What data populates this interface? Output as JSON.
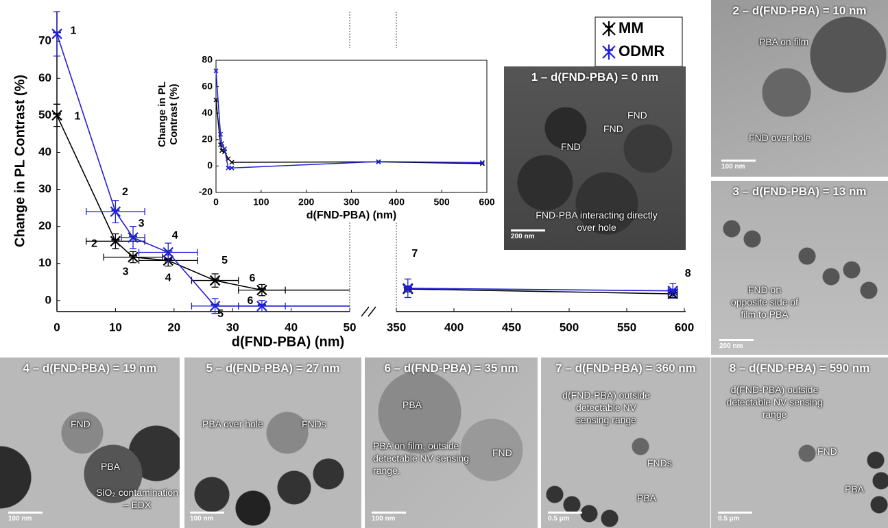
{
  "chart_data": [
    {
      "type": "line",
      "y_label": "Change in PL Contrast (%)",
      "x_label": "d(FND-PBA) (nm)",
      "xlim": [
        0,
        600
      ],
      "x_break": [
        50,
        350
      ],
      "xticks": [
        0,
        10,
        20,
        30,
        40,
        50,
        350,
        400,
        450,
        500,
        550,
        600
      ],
      "ylim": [
        -3,
        78
      ],
      "yticks": [
        0,
        10,
        20,
        30,
        40,
        50,
        60,
        70
      ],
      "legend": "upper right",
      "series": [
        {
          "name": "MM",
          "color": "#000000",
          "x": [
            0,
            10,
            13,
            19,
            27,
            35,
            360,
            590
          ],
          "values": [
            50,
            16,
            11.7,
            10.8,
            5.4,
            2.8,
            3.1,
            1.8
          ],
          "yerr": [
            3,
            2,
            1.5,
            1.5,
            1.8,
            1.5,
            0.8,
            1
          ],
          "xerr": [
            0,
            5,
            5,
            5,
            4,
            4,
            3,
            4
          ],
          "point_labels": [
            "1",
            "2",
            "3",
            "4",
            "5",
            "6",
            null,
            null
          ]
        },
        {
          "name": "ODMR",
          "color": "#1f1fd6",
          "x": [
            0,
            10,
            13,
            19,
            27,
            35,
            360,
            590
          ],
          "values": [
            72,
            24,
            17,
            13,
            -1.5,
            -1.5,
            3.3,
            2.6
          ],
          "yerr": [
            6,
            3,
            3,
            2.5,
            2,
            1.5,
            2.5,
            2
          ],
          "xerr": [
            0,
            5,
            2,
            5,
            4,
            4,
            3,
            4
          ],
          "point_labels": [
            "1",
            "2",
            "3",
            "4",
            "5",
            "6",
            "7",
            "8"
          ]
        }
      ]
    },
    {
      "type": "line",
      "y_label": "Change in PL Contrast (%)",
      "x_label": "d(FND-PBA) (nm)",
      "xlim": [
        0,
        600
      ],
      "xticks": [
        0,
        100,
        200,
        300,
        400,
        500,
        600
      ],
      "ylim": [
        -20,
        80
      ],
      "yticks": [
        -20,
        0,
        20,
        40,
        60,
        80
      ],
      "series": [
        {
          "color": "#000000",
          "x": [
            0,
            10,
            13,
            19,
            27,
            35,
            360,
            590
          ],
          "values": [
            50,
            16,
            11.7,
            10.8,
            5.4,
            2.8,
            3.1,
            1.8
          ]
        },
        {
          "color": "#1f1fd6",
          "x": [
            0,
            10,
            13,
            19,
            27,
            35,
            360,
            590
          ],
          "values": [
            72,
            24,
            17,
            13,
            -1.5,
            -1.5,
            3.3,
            2.6
          ]
        }
      ]
    }
  ],
  "panels": [
    {
      "title": "1 – d(FND-PBA) = 0 nm",
      "notes": [
        "FND",
        "FND",
        "FND",
        "FND-PBA interacting directly over hole"
      ],
      "scale": "200 nm"
    },
    {
      "title": "2 – d(FND-PBA) = 10 nm",
      "notes": [
        "PBA on film",
        "FND over hole"
      ],
      "scale": "100 nm"
    },
    {
      "title": "3 – d(FND-PBA) = 13 nm",
      "notes": [
        "FND on opposite side of film to PBA"
      ],
      "scale": "200 nm"
    },
    {
      "title": "4 – d(FND-PBA) = 19 nm",
      "notes": [
        "FND",
        "PBA",
        "SiO₂ contamination – EDX"
      ],
      "scale": "100 nm"
    },
    {
      "title": "5 – d(FND-PBA) = 27 nm",
      "notes": [
        "PBA over hole",
        "FNDs"
      ],
      "scale": "100 nm"
    },
    {
      "title": "6 – d(FND-PBA) = 35 nm",
      "notes": [
        "PBA",
        "FND",
        "PBA on film, outside detectable NV sensing range."
      ],
      "scale": "100 nm"
    },
    {
      "title": "7 – d(FND-PBA) = 360 nm",
      "notes": [
        "d(FND-PBA) outside detectable NV sensing range",
        "FNDs",
        "PBA"
      ],
      "scale": "0.5 µm"
    },
    {
      "title": "8 – d(FND-PBA) = 590 nm",
      "notes": [
        "d(FND-PBA) outside detectable NV sensing range",
        "FND",
        "PBA"
      ],
      "scale": "0.5 µm"
    }
  ]
}
